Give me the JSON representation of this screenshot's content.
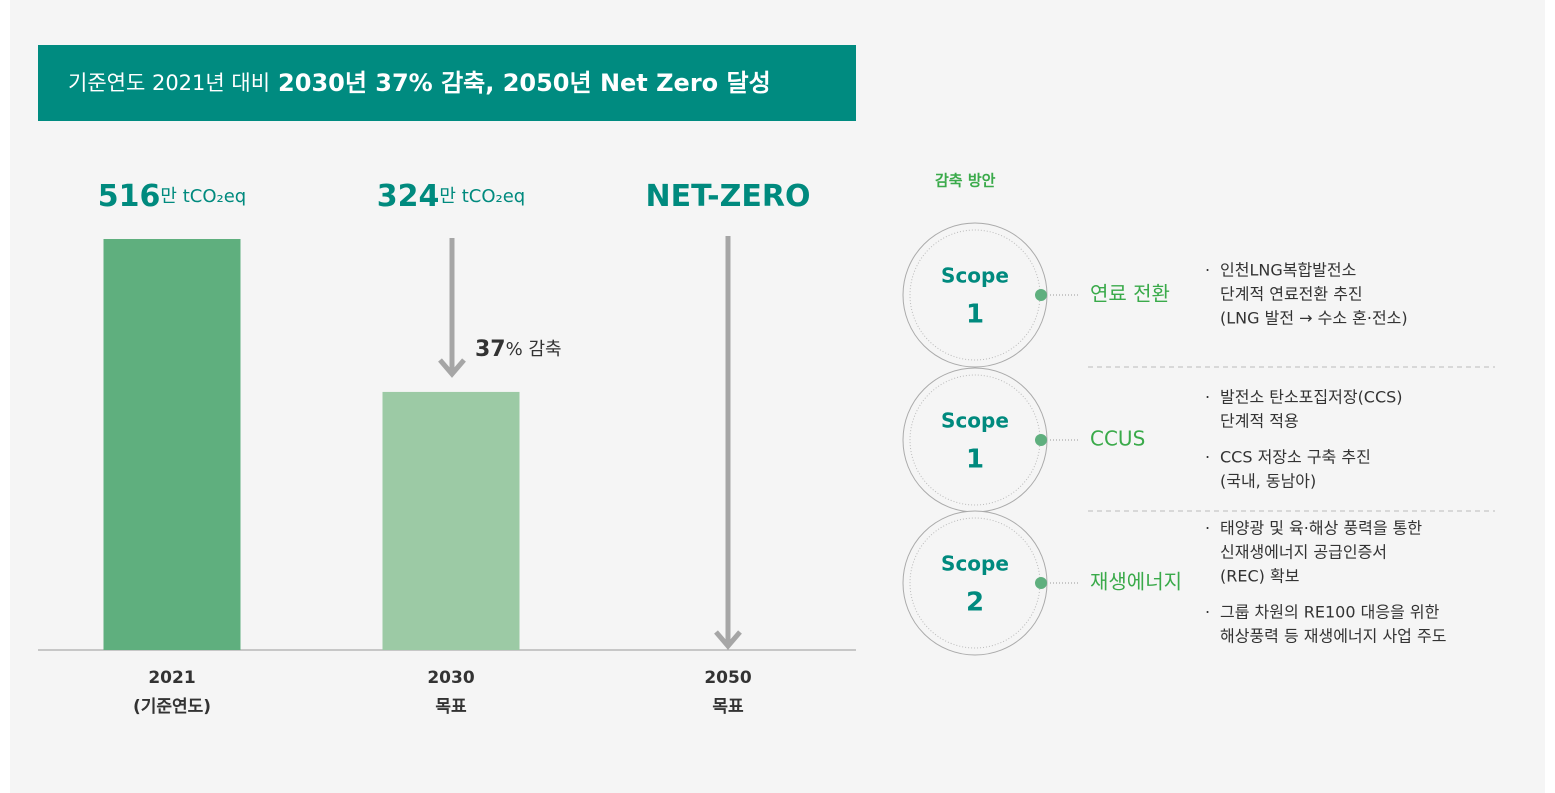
{
  "header": {
    "prefix": "기준연도 2021년 대비",
    "highlight": "2030년 37% 감축, 2050년 Net Zero 달성"
  },
  "chart_data": {
    "type": "bar",
    "categories": [
      "2021",
      "2030",
      "2050"
    ],
    "category_sublabels": [
      "(기준연도)",
      "목표",
      "목표"
    ],
    "values": [
      516,
      324,
      0
    ],
    "value_labels": [
      "516",
      "324",
      "NET-ZERO"
    ],
    "value_units": [
      "만 tCO₂eq",
      "만 tCO₂eq",
      null
    ],
    "colors": [
      "#5faf7e",
      "#9ccaa5",
      "#9ccaa5"
    ],
    "annotation": {
      "value": 37,
      "text": "% 감축"
    }
  },
  "plan": {
    "title": "감축 방안",
    "items": [
      {
        "scope": "Scope",
        "number": "1",
        "name": "연료 전환",
        "bullets": [
          [
            "인천LNG복합발전소",
            "단계적 연료전환 추진",
            "(LNG 발전 → 수소 혼·전소)"
          ]
        ]
      },
      {
        "scope": "Scope",
        "number": "1",
        "name": "CCUS",
        "bullets": [
          [
            "발전소 탄소포집저장(CCS)",
            "단계적 적용"
          ],
          [
            "CCS 저장소 구축 추진",
            "(국내, 동남아)"
          ]
        ]
      },
      {
        "scope": "Scope",
        "number": "2",
        "name": "재생에너지",
        "bullets": [
          [
            "태양광 및 육·해상 풍력을 통한",
            "신재생에너지 공급인증서",
            "(REC) 확보"
          ],
          [
            "그룹 차원의 RE100 대응을 위한",
            "해상풍력 등 재생에너지 사업 주도"
          ]
        ]
      }
    ]
  }
}
